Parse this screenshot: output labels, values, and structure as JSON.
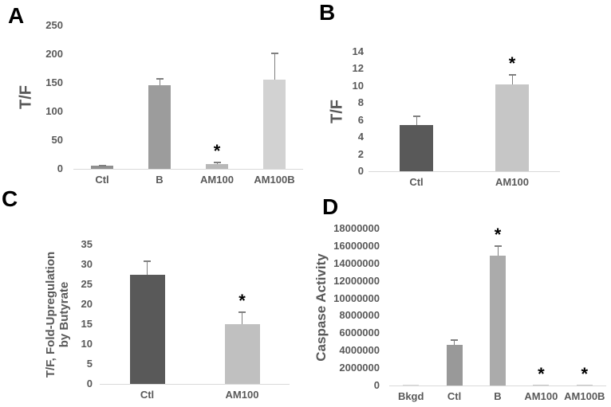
{
  "figure": {
    "background": "#ffffff",
    "text_color": "#595959",
    "axis_color": "#d9d9d9",
    "error_bar_color": "#7f7f7f",
    "star_color": "#000000",
    "star_symbol": "*",
    "panels": [
      {
        "label": "A"
      },
      {
        "label": "B"
      },
      {
        "label": "C"
      },
      {
        "label": "D"
      }
    ]
  },
  "chart_data": [
    {
      "panel": "A",
      "type": "bar",
      "title": "",
      "xlabel": "",
      "ylabel": "T/F",
      "ylabel_lines": [
        "T/F"
      ],
      "ylim": [
        0,
        250
      ],
      "yticks": [
        0,
        50,
        100,
        150,
        200,
        250
      ],
      "categories": [
        "Ctl",
        "B",
        "AM100",
        "AM100B"
      ],
      "values": [
        5,
        146,
        9,
        155
      ],
      "errors": [
        2,
        13,
        4,
        48
      ],
      "significance": [
        false,
        false,
        true,
        false
      ],
      "bar_colors": [
        "#8f8f8f",
        "#9c9c9c",
        "#b8b8b8",
        "#d2d2d2"
      ],
      "grid": false,
      "legend": null
    },
    {
      "panel": "B",
      "type": "bar",
      "title": "",
      "xlabel": "",
      "ylabel": "T/F",
      "ylabel_lines": [
        "T/F"
      ],
      "ylim": [
        0,
        14
      ],
      "yticks": [
        0,
        2,
        4,
        6,
        8,
        10,
        12,
        14
      ],
      "categories": [
        "Ctl",
        "AM100"
      ],
      "values": [
        5.4,
        10.2
      ],
      "errors": [
        1.1,
        1.2
      ],
      "significance": [
        false,
        true
      ],
      "bar_colors": [
        "#595959",
        "#c6c6c6"
      ],
      "grid": false,
      "legend": null
    },
    {
      "panel": "C",
      "type": "bar",
      "title": "",
      "xlabel": "",
      "ylabel": "T/F, Fold-Upregulation by Butyrate",
      "ylabel_lines": [
        "T/F, Fold-Upregulation",
        "by Butyrate"
      ],
      "ylim": [
        0,
        35
      ],
      "yticks": [
        0,
        5,
        10,
        15,
        20,
        25,
        30,
        35
      ],
      "categories": [
        "Ctl",
        "AM100"
      ],
      "values": [
        27.5,
        15
      ],
      "errors": [
        3.5,
        3.3
      ],
      "significance": [
        false,
        true
      ],
      "bar_colors": [
        "#595959",
        "#c0c0c0"
      ],
      "grid": false,
      "legend": null
    },
    {
      "panel": "D",
      "type": "bar",
      "title": "",
      "xlabel": "",
      "ylabel": "Caspase Activity",
      "ylabel_lines": [
        "Caspase Activity"
      ],
      "ylim": [
        0,
        18000000
      ],
      "yticks": [
        0,
        2000000,
        4000000,
        6000000,
        8000000,
        10000000,
        12000000,
        14000000,
        16000000,
        18000000
      ],
      "categories": [
        "Bkgd",
        "Ctl",
        "B",
        "AM100",
        "AM100B"
      ],
      "values": [
        120000,
        4700000,
        14900000,
        60000,
        60000
      ],
      "errors": [
        0,
        600000,
        1200000,
        0,
        0
      ],
      "significance": [
        false,
        false,
        true,
        true,
        true
      ],
      "bar_colors": [
        "#d9d9d9",
        "#999999",
        "#ababab",
        "#c9c9c9",
        "#c9c9c9"
      ],
      "grid": false,
      "legend": null
    }
  ]
}
